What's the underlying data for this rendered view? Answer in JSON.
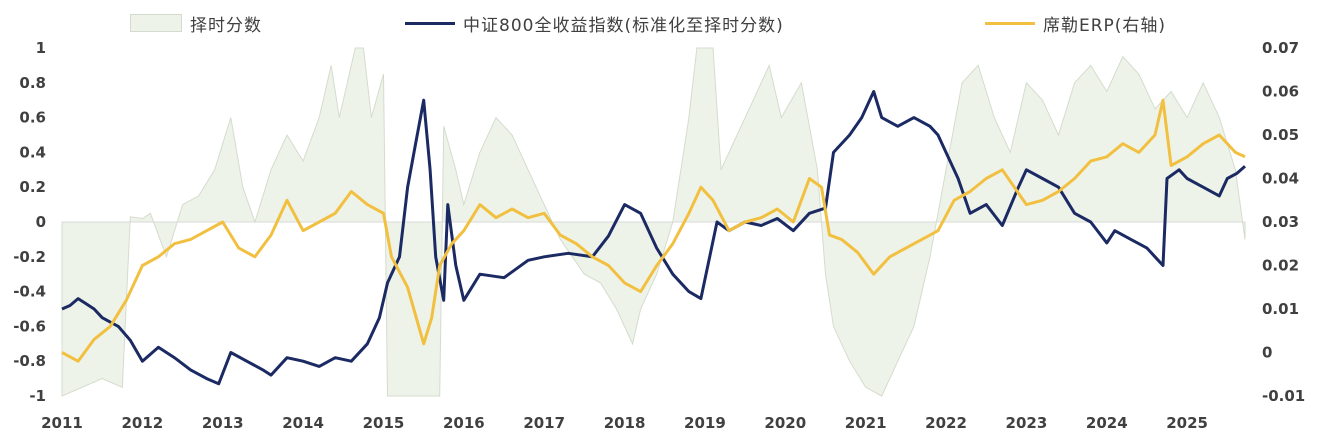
{
  "legend": [
    {
      "label": "择时分数",
      "kind": "area",
      "color": "#eef3ea"
    },
    {
      "label": "中证800全收益指数(标准化至择时分数)",
      "kind": "line",
      "color": "#1b2a63"
    },
    {
      "label": "席勒ERP(右轴)",
      "kind": "line",
      "color": "#f2c040"
    }
  ],
  "chart_data": {
    "type": "line",
    "title": "",
    "x_ticks": [
      "2011",
      "2012",
      "2013",
      "2014",
      "2015",
      "2016",
      "2017",
      "2018",
      "2019",
      "2020",
      "2021",
      "2022",
      "2023",
      "2024",
      "2025"
    ],
    "x_range": [
      2011.0,
      2025.72
    ],
    "y_left": {
      "ticks": [
        "1",
        "0.8",
        "0.6",
        "0.4",
        "0.2",
        "0",
        "-0.2",
        "-0.4",
        "-0.6",
        "-0.8",
        "-1"
      ],
      "ylim": [
        -1,
        1
      ]
    },
    "y_right": {
      "ticks": [
        "0.07",
        "0.06",
        "0.05",
        "0.04",
        "0.03",
        "0.02",
        "0.01",
        "0",
        "-0.01"
      ],
      "ylim": [
        -0.01,
        0.07
      ]
    },
    "series": [
      {
        "name": "择时分数",
        "axis": "left",
        "kind": "area",
        "color": "#eef3ea",
        "points": [
          [
            2011.0,
            -1
          ],
          [
            2011.5,
            -0.9
          ],
          [
            2011.75,
            -0.95
          ],
          [
            2011.85,
            0.03
          ],
          [
            2012.0,
            0.02
          ],
          [
            2012.1,
            0.05
          ],
          [
            2012.3,
            -0.2
          ],
          [
            2012.5,
            0.1
          ],
          [
            2012.7,
            0.15
          ],
          [
            2012.9,
            0.3
          ],
          [
            2013.0,
            0.45
          ],
          [
            2013.1,
            0.6
          ],
          [
            2013.25,
            0.2
          ],
          [
            2013.4,
            0.0
          ],
          [
            2013.6,
            0.3
          ],
          [
            2013.8,
            0.5
          ],
          [
            2014.0,
            0.35
          ],
          [
            2014.2,
            0.6
          ],
          [
            2014.35,
            0.9
          ],
          [
            2014.45,
            0.6
          ],
          [
            2014.55,
            0.8
          ],
          [
            2014.65,
            1
          ],
          [
            2014.75,
            1
          ],
          [
            2014.85,
            0.6
          ],
          [
            2015.0,
            0.85
          ],
          [
            2015.05,
            -1
          ],
          [
            2015.7,
            -1
          ],
          [
            2015.75,
            0.55
          ],
          [
            2015.9,
            0.3
          ],
          [
            2016.0,
            0.1
          ],
          [
            2016.2,
            0.4
          ],
          [
            2016.4,
            0.6
          ],
          [
            2016.6,
            0.5
          ],
          [
            2016.8,
            0.3
          ],
          [
            2017.0,
            0.1
          ],
          [
            2017.2,
            -0.1
          ],
          [
            2017.5,
            -0.3
          ],
          [
            2017.7,
            -0.35
          ],
          [
            2017.9,
            -0.5
          ],
          [
            2018.1,
            -0.7
          ],
          [
            2018.2,
            -0.5
          ],
          [
            2018.4,
            -0.3
          ],
          [
            2018.6,
            0.0
          ],
          [
            2018.8,
            0.6
          ],
          [
            2018.9,
            1
          ],
          [
            2019.1,
            1
          ],
          [
            2019.2,
            0.3
          ],
          [
            2019.4,
            0.5
          ],
          [
            2019.6,
            0.7
          ],
          [
            2019.8,
            0.9
          ],
          [
            2019.95,
            0.6
          ],
          [
            2020.2,
            0.8
          ],
          [
            2020.4,
            0.3
          ],
          [
            2020.5,
            -0.3
          ],
          [
            2020.6,
            -0.6
          ],
          [
            2020.8,
            -0.8
          ],
          [
            2021.0,
            -0.95
          ],
          [
            2021.2,
            -1
          ],
          [
            2021.4,
            -0.8
          ],
          [
            2021.6,
            -0.6
          ],
          [
            2021.8,
            -0.2
          ],
          [
            2022.0,
            0.3
          ],
          [
            2022.2,
            0.8
          ],
          [
            2022.4,
            0.9
          ],
          [
            2022.6,
            0.6
          ],
          [
            2022.8,
            0.4
          ],
          [
            2023.0,
            0.8
          ],
          [
            2023.2,
            0.7
          ],
          [
            2023.4,
            0.5
          ],
          [
            2023.6,
            0.8
          ],
          [
            2023.8,
            0.9
          ],
          [
            2024.0,
            0.75
          ],
          [
            2024.2,
            0.95
          ],
          [
            2024.4,
            0.85
          ],
          [
            2024.6,
            0.65
          ],
          [
            2024.8,
            0.75
          ],
          [
            2025.0,
            0.6
          ],
          [
            2025.2,
            0.8
          ],
          [
            2025.4,
            0.6
          ],
          [
            2025.6,
            0.3
          ],
          [
            2025.72,
            -0.1
          ]
        ]
      },
      {
        "name": "中证800全收益指数(标准化至择时分数)",
        "axis": "left",
        "kind": "line",
        "color": "#1b2a63",
        "points": [
          [
            2011.0,
            -0.5
          ],
          [
            2011.1,
            -0.48
          ],
          [
            2011.2,
            -0.44
          ],
          [
            2011.3,
            -0.47
          ],
          [
            2011.4,
            -0.5
          ],
          [
            2011.5,
            -0.55
          ],
          [
            2011.7,
            -0.6
          ],
          [
            2011.85,
            -0.68
          ],
          [
            2012.0,
            -0.8
          ],
          [
            2012.2,
            -0.72
          ],
          [
            2012.4,
            -0.78
          ],
          [
            2012.6,
            -0.85
          ],
          [
            2012.8,
            -0.9
          ],
          [
            2012.95,
            -0.93
          ],
          [
            2013.1,
            -0.75
          ],
          [
            2013.3,
            -0.8
          ],
          [
            2013.5,
            -0.85
          ],
          [
            2013.6,
            -0.88
          ],
          [
            2013.8,
            -0.78
          ],
          [
            2014.0,
            -0.8
          ],
          [
            2014.2,
            -0.83
          ],
          [
            2014.4,
            -0.78
          ],
          [
            2014.6,
            -0.8
          ],
          [
            2014.8,
            -0.7
          ],
          [
            2014.95,
            -0.55
          ],
          [
            2015.05,
            -0.35
          ],
          [
            2015.2,
            -0.2
          ],
          [
            2015.3,
            0.2
          ],
          [
            2015.4,
            0.45
          ],
          [
            2015.5,
            0.7
          ],
          [
            2015.58,
            0.3
          ],
          [
            2015.65,
            -0.2
          ],
          [
            2015.75,
            -0.45
          ],
          [
            2015.8,
            0.1
          ],
          [
            2015.9,
            -0.25
          ],
          [
            2016.0,
            -0.45
          ],
          [
            2016.2,
            -0.3
          ],
          [
            2016.5,
            -0.32
          ],
          [
            2016.8,
            -0.22
          ],
          [
            2017.0,
            -0.2
          ],
          [
            2017.3,
            -0.18
          ],
          [
            2017.6,
            -0.2
          ],
          [
            2017.8,
            -0.08
          ],
          [
            2018.0,
            0.1
          ],
          [
            2018.2,
            0.05
          ],
          [
            2018.4,
            -0.15
          ],
          [
            2018.6,
            -0.3
          ],
          [
            2018.8,
            -0.4
          ],
          [
            2018.95,
            -0.44
          ],
          [
            2019.15,
            0.0
          ],
          [
            2019.3,
            -0.05
          ],
          [
            2019.5,
            0.0
          ],
          [
            2019.7,
            -0.02
          ],
          [
            2019.9,
            0.02
          ],
          [
            2020.1,
            -0.05
          ],
          [
            2020.3,
            0.05
          ],
          [
            2020.5,
            0.08
          ],
          [
            2020.6,
            0.4
          ],
          [
            2020.8,
            0.5
          ],
          [
            2020.95,
            0.6
          ],
          [
            2021.1,
            0.75
          ],
          [
            2021.2,
            0.6
          ],
          [
            2021.4,
            0.55
          ],
          [
            2021.6,
            0.6
          ],
          [
            2021.8,
            0.55
          ],
          [
            2021.9,
            0.5
          ],
          [
            2022.0,
            0.4
          ],
          [
            2022.15,
            0.25
          ],
          [
            2022.3,
            0.05
          ],
          [
            2022.5,
            0.1
          ],
          [
            2022.7,
            -0.02
          ],
          [
            2022.9,
            0.2
          ],
          [
            2023.0,
            0.3
          ],
          [
            2023.2,
            0.25
          ],
          [
            2023.4,
            0.2
          ],
          [
            2023.6,
            0.05
          ],
          [
            2023.8,
            0.0
          ],
          [
            2024.0,
            -0.12
          ],
          [
            2024.1,
            -0.05
          ],
          [
            2024.3,
            -0.1
          ],
          [
            2024.5,
            -0.15
          ],
          [
            2024.6,
            -0.2
          ],
          [
            2024.7,
            -0.25
          ],
          [
            2024.75,
            0.25
          ],
          [
            2024.9,
            0.3
          ],
          [
            2025.0,
            0.25
          ],
          [
            2025.2,
            0.2
          ],
          [
            2025.4,
            0.15
          ],
          [
            2025.5,
            0.25
          ],
          [
            2025.62,
            0.28
          ],
          [
            2025.72,
            0.32
          ]
        ]
      },
      {
        "name": "席勒ERP(右轴)",
        "axis": "right",
        "kind": "line",
        "color": "#f2c040",
        "points": [
          [
            2011.0,
            0.0
          ],
          [
            2011.2,
            -0.002
          ],
          [
            2011.4,
            0.003
          ],
          [
            2011.6,
            0.006
          ],
          [
            2011.8,
            0.012
          ],
          [
            2012.0,
            0.02
          ],
          [
            2012.2,
            0.022
          ],
          [
            2012.4,
            0.025
          ],
          [
            2012.6,
            0.026
          ],
          [
            2012.8,
            0.028
          ],
          [
            2013.0,
            0.03
          ],
          [
            2013.2,
            0.024
          ],
          [
            2013.4,
            0.022
          ],
          [
            2013.6,
            0.027
          ],
          [
            2013.8,
            0.035
          ],
          [
            2014.0,
            0.028
          ],
          [
            2014.2,
            0.03
          ],
          [
            2014.4,
            0.032
          ],
          [
            2014.6,
            0.037
          ],
          [
            2014.8,
            0.034
          ],
          [
            2015.0,
            0.032
          ],
          [
            2015.1,
            0.022
          ],
          [
            2015.3,
            0.015
          ],
          [
            2015.5,
            0.002
          ],
          [
            2015.6,
            0.008
          ],
          [
            2015.7,
            0.02
          ],
          [
            2015.85,
            0.025
          ],
          [
            2016.0,
            0.028
          ],
          [
            2016.2,
            0.034
          ],
          [
            2016.4,
            0.031
          ],
          [
            2016.6,
            0.033
          ],
          [
            2016.8,
            0.031
          ],
          [
            2017.0,
            0.032
          ],
          [
            2017.2,
            0.027
          ],
          [
            2017.4,
            0.025
          ],
          [
            2017.6,
            0.022
          ],
          [
            2017.8,
            0.02
          ],
          [
            2018.0,
            0.016
          ],
          [
            2018.2,
            0.014
          ],
          [
            2018.4,
            0.02
          ],
          [
            2018.6,
            0.025
          ],
          [
            2018.8,
            0.032
          ],
          [
            2018.95,
            0.038
          ],
          [
            2019.1,
            0.035
          ],
          [
            2019.3,
            0.028
          ],
          [
            2019.5,
            0.03
          ],
          [
            2019.7,
            0.031
          ],
          [
            2019.9,
            0.033
          ],
          [
            2020.1,
            0.03
          ],
          [
            2020.3,
            0.04
          ],
          [
            2020.45,
            0.038
          ],
          [
            2020.55,
            0.027
          ],
          [
            2020.7,
            0.026
          ],
          [
            2020.9,
            0.023
          ],
          [
            2021.1,
            0.018
          ],
          [
            2021.3,
            0.022
          ],
          [
            2021.5,
            0.024
          ],
          [
            2021.7,
            0.026
          ],
          [
            2021.9,
            0.028
          ],
          [
            2022.1,
            0.035
          ],
          [
            2022.3,
            0.037
          ],
          [
            2022.5,
            0.04
          ],
          [
            2022.7,
            0.042
          ],
          [
            2022.85,
            0.038
          ],
          [
            2023.0,
            0.034
          ],
          [
            2023.2,
            0.035
          ],
          [
            2023.4,
            0.037
          ],
          [
            2023.6,
            0.04
          ],
          [
            2023.8,
            0.044
          ],
          [
            2024.0,
            0.045
          ],
          [
            2024.2,
            0.048
          ],
          [
            2024.4,
            0.046
          ],
          [
            2024.6,
            0.05
          ],
          [
            2024.7,
            0.058
          ],
          [
            2024.8,
            0.043
          ],
          [
            2025.0,
            0.045
          ],
          [
            2025.2,
            0.048
          ],
          [
            2025.4,
            0.05
          ],
          [
            2025.6,
            0.046
          ],
          [
            2025.72,
            0.045
          ]
        ]
      }
    ]
  }
}
